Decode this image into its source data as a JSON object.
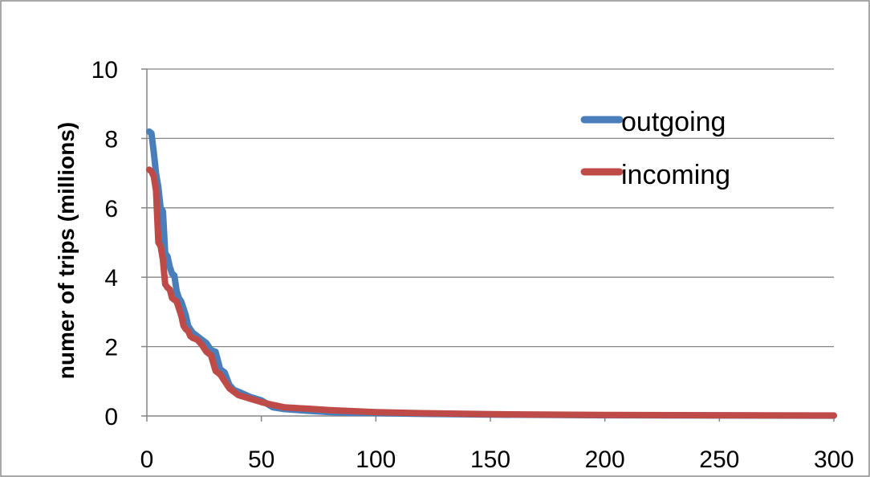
{
  "chart_data": {
    "type": "line",
    "title": "",
    "xlabel": "",
    "ylabel": "numer of trips (millions)",
    "xlim": [
      0,
      300
    ],
    "ylim": [
      0,
      10
    ],
    "xticks": [
      0,
      50,
      100,
      150,
      200,
      250,
      300
    ],
    "yticks": [
      0,
      2,
      4,
      6,
      8,
      10
    ],
    "grid": "horizontal",
    "legend": "top-right",
    "series": [
      {
        "name": "outgoing",
        "color": "#4a7ebb",
        "x": [
          1,
          2,
          3,
          4,
          5,
          6,
          7,
          8,
          9,
          10,
          11,
          12,
          13,
          14,
          15,
          16,
          17,
          18,
          19,
          20,
          22,
          24,
          26,
          28,
          30,
          32,
          34,
          36,
          38,
          40,
          45,
          50,
          55,
          60,
          70,
          80,
          90,
          100,
          120,
          150,
          200,
          250,
          300
        ],
        "y": [
          8.2,
          8.15,
          7.6,
          7.0,
          6.6,
          6.0,
          5.9,
          4.7,
          4.6,
          4.3,
          4.1,
          4.05,
          3.6,
          3.4,
          3.3,
          3.1,
          2.9,
          2.6,
          2.5,
          2.4,
          2.3,
          2.2,
          2.1,
          1.9,
          1.85,
          1.35,
          1.25,
          0.9,
          0.75,
          0.7,
          0.55,
          0.45,
          0.25,
          0.2,
          0.15,
          0.11,
          0.09,
          0.08,
          0.06,
          0.04,
          0.02,
          0.015,
          0.01
        ]
      },
      {
        "name": "incoming",
        "color": "#be4b48",
        "x": [
          1,
          2,
          3,
          4,
          5,
          6,
          7,
          8,
          9,
          10,
          11,
          12,
          13,
          14,
          15,
          16,
          17,
          18,
          19,
          20,
          22,
          24,
          26,
          28,
          30,
          32,
          34,
          36,
          38,
          40,
          45,
          50,
          55,
          60,
          70,
          80,
          90,
          100,
          120,
          150,
          200,
          250,
          300
        ],
        "y": [
          7.1,
          7.05,
          6.9,
          6.5,
          5.0,
          4.9,
          4.5,
          3.8,
          3.7,
          3.65,
          3.4,
          3.35,
          3.3,
          3.1,
          2.9,
          2.6,
          2.5,
          2.45,
          2.3,
          2.25,
          2.2,
          2.05,
          1.85,
          1.75,
          1.3,
          1.2,
          1.0,
          0.8,
          0.7,
          0.6,
          0.5,
          0.4,
          0.32,
          0.25,
          0.21,
          0.17,
          0.14,
          0.11,
          0.08,
          0.05,
          0.03,
          0.02,
          0.015
        ]
      }
    ]
  }
}
